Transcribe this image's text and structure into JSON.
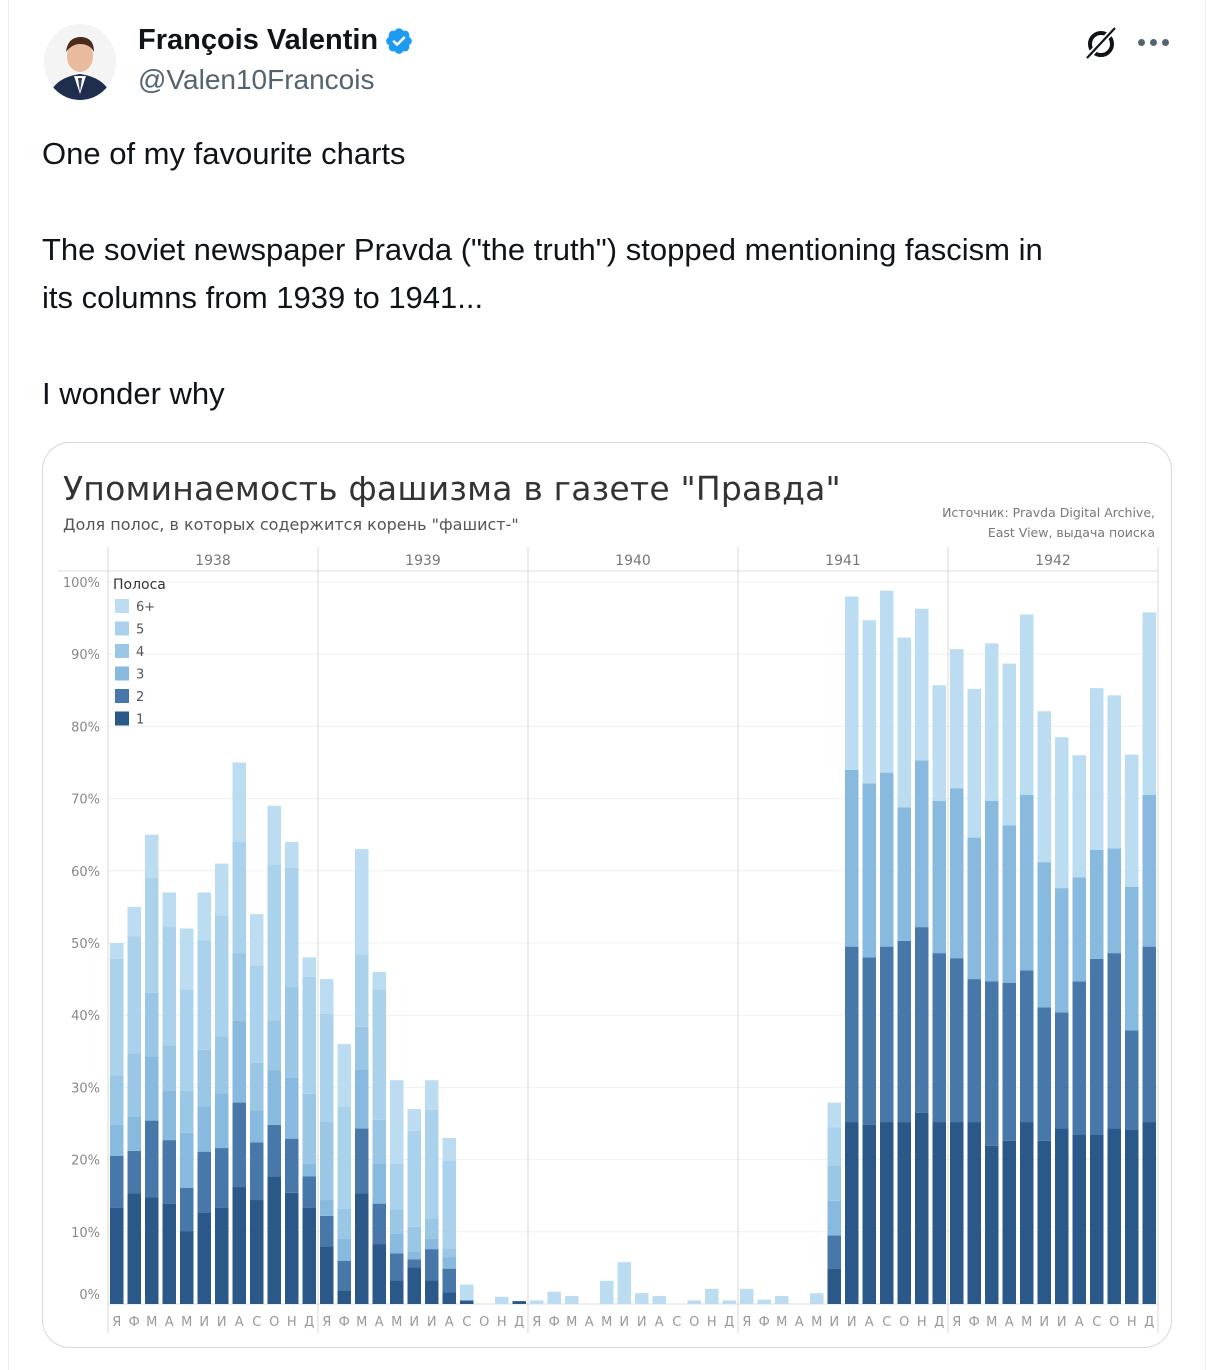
{
  "tweet": {
    "author_name": "François Valentin",
    "handle": "@Valen10Francois",
    "lines": [
      "One of my favourite charts",
      "The soviet newspaper Pravda (\"the truth\") stopped mentioning fascism in",
      "its columns from 1939 to 1941...",
      "I wonder why"
    ],
    "verified_color": "#1d9bf0"
  },
  "chart_data": {
    "type": "bar",
    "stacked": true,
    "title": "Упоминаемость фашизма в газете \"Правда\"",
    "subtitle": "Доля полос, в которых содержится корень \"фашист-\"",
    "source_lines": [
      "Источник: Pravda Digital Archive,",
      "East View, выдача поиска"
    ],
    "years": [
      "1938",
      "1939",
      "1940",
      "1941",
      "1942"
    ],
    "month_labels": [
      "Я",
      "Ф",
      "М",
      "А",
      "М",
      "И",
      "И",
      "А",
      "С",
      "О",
      "Н",
      "Д"
    ],
    "ylim": [
      0,
      100
    ],
    "yticks": [
      {
        "value": 0,
        "label": "0%"
      },
      {
        "value": 10,
        "label": "10%"
      },
      {
        "value": 20,
        "label": "20%"
      },
      {
        "value": 30,
        "label": "30%"
      },
      {
        "value": 40,
        "label": "40%"
      },
      {
        "value": 50,
        "label": "50%"
      },
      {
        "value": 60,
        "label": "60%"
      },
      {
        "value": 70,
        "label": "70%"
      },
      {
        "value": 80,
        "label": "80%"
      },
      {
        "value": 90,
        "label": "90%"
      },
      {
        "value": 100,
        "label": "100%"
      }
    ],
    "legend_title": "Полоса",
    "legend": [
      {
        "label": "6+",
        "color": "#bcdcf1"
      },
      {
        "label": "5",
        "color": "#abd2ec"
      },
      {
        "label": "4",
        "color": "#9bc7e6"
      },
      {
        "label": "3",
        "color": "#88b9de"
      },
      {
        "label": "2",
        "color": "#4878a9"
      },
      {
        "label": "1",
        "color": "#2a5889"
      }
    ],
    "legend_placement": "top-left",
    "stack_order": [
      "1",
      "2",
      "3",
      "4",
      "5",
      "6+"
    ],
    "note": "each month: cumulative percent at top of segments 1,2,3,4,5,6+",
    "cumulative": [
      [
        13.3,
        20.5,
        24.8,
        31.7,
        47.8,
        50
      ],
      [
        15.3,
        21.2,
        25.9,
        34.7,
        50.9,
        55
      ],
      [
        14.8,
        25.4,
        34.3,
        43.1,
        59,
        65
      ],
      [
        13.9,
        22.7,
        29.6,
        35.8,
        52.3,
        57
      ],
      [
        10.1,
        16.1,
        23.7,
        29.6,
        43.6,
        52
      ],
      [
        12.7,
        21.1,
        27.4,
        35.2,
        50.4,
        57
      ],
      [
        13.3,
        21.6,
        29.2,
        37.1,
        53.8,
        61
      ],
      [
        16.2,
        27.9,
        39.2,
        48.6,
        64,
        75
      ],
      [
        14.4,
        22.4,
        26.8,
        33.4,
        46.9,
        54
      ],
      [
        17.7,
        24.8,
        32.4,
        39.3,
        60.9,
        69
      ],
      [
        15.4,
        22.9,
        31.3,
        44,
        60.4,
        64
      ],
      [
        13.3,
        17.7,
        19.4,
        29.1,
        45.3,
        48
      ],
      [
        8,
        12.2,
        14.4,
        25.3,
        40.2,
        45
      ],
      [
        1.9,
        6,
        9.1,
        13.2,
        27.4,
        36
      ],
      [
        15.3,
        24.3,
        32.5,
        38.4,
        48.4,
        63
      ],
      [
        8.3,
        13.9,
        19.5,
        25.5,
        43.6,
        46
      ],
      [
        3.3,
        7,
        9.7,
        13.1,
        19.5,
        31
      ],
      [
        5.1,
        6.2,
        7.2,
        10.7,
        24,
        27
      ],
      [
        3.3,
        7.6,
        9.1,
        11.9,
        26.9,
        31
      ],
      [
        1.6,
        4.9,
        6.5,
        7.7,
        19.8,
        23
      ],
      [
        0.5,
        0.5,
        0.5,
        0.5,
        0.5,
        2.7
      ],
      [
        0,
        0,
        0,
        0,
        0,
        0
      ],
      [
        0,
        0,
        0,
        0,
        0,
        1.0
      ],
      [
        0.4,
        0.4,
        0.4,
        0.4,
        0.4,
        0.4
      ],
      [
        0,
        0,
        0,
        0,
        0,
        0.5
      ],
      [
        0,
        0,
        0,
        0,
        0,
        1.7
      ],
      [
        0,
        0,
        0,
        0,
        0,
        1.1
      ],
      [
        0,
        0,
        0,
        0,
        0,
        0
      ],
      [
        0,
        0,
        0,
        0,
        0,
        3.2
      ],
      [
        0,
        0,
        0,
        0,
        0,
        5.8
      ],
      [
        0,
        0,
        0,
        0,
        0,
        1.5
      ],
      [
        0,
        0,
        0,
        0,
        0,
        1.1
      ],
      [
        0,
        0,
        0,
        0,
        0,
        0
      ],
      [
        0,
        0,
        0,
        0,
        0,
        0.5
      ],
      [
        0,
        0,
        0,
        0,
        0,
        2.1
      ],
      [
        0,
        0,
        0,
        0,
        0,
        0.5
      ],
      [
        0,
        0,
        0,
        0,
        0,
        2.1
      ],
      [
        0,
        0,
        0,
        0,
        0,
        0.6
      ],
      [
        0,
        0,
        0,
        0,
        0,
        1.1
      ],
      [
        0,
        0,
        0,
        0,
        0,
        0
      ],
      [
        0,
        0,
        0,
        0,
        0,
        1.5
      ],
      [
        4.9,
        9.5,
        14.3,
        19.2,
        24.5,
        27.9
      ],
      [
        25.2,
        49.5,
        74,
        74,
        74,
        98
      ],
      [
        24.8,
        48,
        72.1,
        72.1,
        72.1,
        94.7
      ],
      [
        25.2,
        49.5,
        73.6,
        73.6,
        73.6,
        98.8
      ],
      [
        25.2,
        50.3,
        68.8,
        68.8,
        68.8,
        92.3
      ],
      [
        26.5,
        52.2,
        75.3,
        75.3,
        75.3,
        96.3
      ],
      [
        25.2,
        48.6,
        69.7,
        69.7,
        69.7,
        85.7
      ],
      [
        25.2,
        47.9,
        71.4,
        71.4,
        71.4,
        90.7
      ],
      [
        25.2,
        45,
        64.6,
        64.6,
        64.6,
        85.2
      ],
      [
        21.9,
        44.7,
        69.7,
        69.7,
        69.7,
        91.5
      ],
      [
        22.6,
        44.5,
        66.3,
        66.3,
        66.3,
        88.7
      ],
      [
        25.2,
        46.2,
        70.5,
        70.5,
        70.5,
        95.5
      ],
      [
        22.6,
        41.1,
        61.2,
        61.2,
        61.2,
        82.1
      ],
      [
        24.3,
        40.4,
        57.6,
        57.6,
        57.6,
        78.5
      ],
      [
        23.5,
        44.7,
        59.1,
        59.1,
        59.1,
        76
      ],
      [
        23.5,
        47.8,
        62.9,
        62.9,
        62.9,
        85.3
      ],
      [
        24.3,
        48.6,
        63.1,
        63.1,
        63.1,
        84.3
      ],
      [
        24.1,
        37.9,
        57.8,
        57.8,
        57.8,
        76.1
      ],
      [
        25.2,
        49.5,
        70.5,
        70.5,
        70.5,
        95.8
      ]
    ]
  }
}
